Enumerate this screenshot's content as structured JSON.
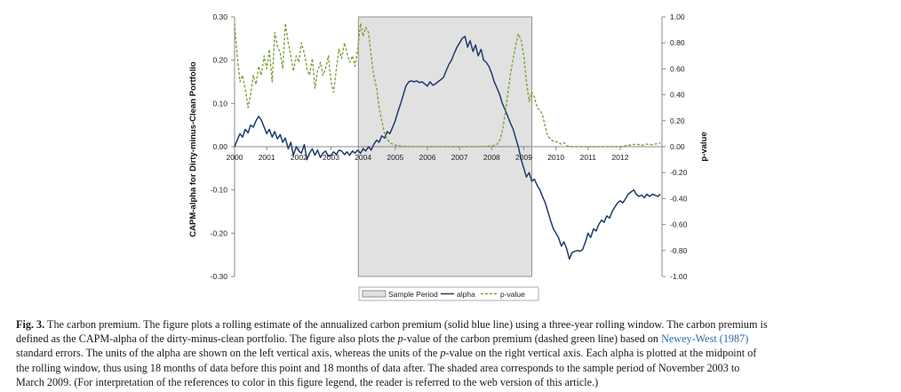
{
  "chart_data": {
    "type": "line",
    "left_axis": {
      "label": "CAPM-alpha for Dirty-minus-Clean Portfolio",
      "range": [
        -0.3,
        0.3
      ],
      "ticks": [
        "0.30",
        "0.20",
        "0.10",
        "0.00",
        "-0.10",
        "-0.20",
        "-0.30"
      ]
    },
    "right_axis": {
      "label": "p-value",
      "range": [
        -1.0,
        1.0
      ],
      "ticks": [
        "1.00",
        "0.80",
        "0.60",
        "0.40",
        "0.20",
        "0.00",
        "-0.20",
        "-0.40",
        "-0.60",
        "-0.80",
        "-1.00"
      ]
    },
    "x_axis": {
      "range": [
        2000,
        2013.3
      ],
      "ticks": [
        "2000",
        "2001",
        "2002",
        "2003",
        "2004",
        "2005",
        "2006",
        "2007",
        "2008",
        "2009",
        "2010",
        "2011",
        "2012"
      ]
    },
    "shaded_region": {
      "name": "Sample Period",
      "x_start": 2003.85,
      "x_end": 2009.25
    },
    "legend": [
      "Sample Period",
      "alpha",
      "p-value"
    ],
    "series": [
      {
        "name": "alpha",
        "axis": "left",
        "style": "solid",
        "color": "#1f3a6e",
        "points": [
          [
            2000.0,
            0.0
          ],
          [
            2000.08,
            0.015
          ],
          [
            2000.17,
            0.03
          ],
          [
            2000.25,
            0.022
          ],
          [
            2000.33,
            0.04
          ],
          [
            2000.42,
            0.032
          ],
          [
            2000.5,
            0.05
          ],
          [
            2000.58,
            0.045
          ],
          [
            2000.67,
            0.06
          ],
          [
            2000.75,
            0.07
          ],
          [
            2000.83,
            0.062
          ],
          [
            2000.92,
            0.045
          ],
          [
            2001.0,
            0.03
          ],
          [
            2001.08,
            0.04
          ],
          [
            2001.17,
            0.022
          ],
          [
            2001.25,
            0.035
          ],
          [
            2001.33,
            0.018
          ],
          [
            2001.42,
            0.028
          ],
          [
            2001.5,
            0.01
          ],
          [
            2001.58,
            0.02
          ],
          [
            2001.67,
            -0.005
          ],
          [
            2001.75,
            0.01
          ],
          [
            2001.83,
            -0.02
          ],
          [
            2001.92,
            0.0
          ],
          [
            2002.0,
            -0.01
          ],
          [
            2002.08,
            -0.015
          ],
          [
            2002.17,
            0.005
          ],
          [
            2002.25,
            -0.03
          ],
          [
            2002.33,
            -0.015
          ],
          [
            2002.42,
            -0.005
          ],
          [
            2002.5,
            -0.02
          ],
          [
            2002.58,
            -0.008
          ],
          [
            2002.67,
            -0.025
          ],
          [
            2002.75,
            -0.015
          ],
          [
            2002.83,
            -0.01
          ],
          [
            2002.92,
            -0.022
          ],
          [
            2003.0,
            -0.02
          ],
          [
            2003.08,
            -0.012
          ],
          [
            2003.17,
            -0.018
          ],
          [
            2003.25,
            -0.008
          ],
          [
            2003.33,
            -0.01
          ],
          [
            2003.42,
            -0.018
          ],
          [
            2003.5,
            -0.012
          ],
          [
            2003.58,
            -0.02
          ],
          [
            2003.67,
            -0.01
          ],
          [
            2003.75,
            -0.015
          ],
          [
            2003.83,
            -0.008
          ],
          [
            2003.92,
            -0.015
          ],
          [
            2004.0,
            -0.005
          ],
          [
            2004.08,
            -0.01
          ],
          [
            2004.17,
            0.0
          ],
          [
            2004.25,
            -0.008
          ],
          [
            2004.33,
            0.005
          ],
          [
            2004.42,
            0.015
          ],
          [
            2004.5,
            0.01
          ],
          [
            2004.58,
            0.025
          ],
          [
            2004.67,
            0.02
          ],
          [
            2004.75,
            0.035
          ],
          [
            2004.83,
            0.03
          ],
          [
            2004.92,
            0.045
          ],
          [
            2005.0,
            0.06
          ],
          [
            2005.08,
            0.08
          ],
          [
            2005.17,
            0.1
          ],
          [
            2005.25,
            0.12
          ],
          [
            2005.33,
            0.14
          ],
          [
            2005.42,
            0.15
          ],
          [
            2005.5,
            0.152
          ],
          [
            2005.58,
            0.15
          ],
          [
            2005.67,
            0.152
          ],
          [
            2005.75,
            0.148
          ],
          [
            2005.83,
            0.15
          ],
          [
            2005.92,
            0.145
          ],
          [
            2006.0,
            0.14
          ],
          [
            2006.08,
            0.15
          ],
          [
            2006.17,
            0.142
          ],
          [
            2006.25,
            0.145
          ],
          [
            2006.33,
            0.15
          ],
          [
            2006.42,
            0.155
          ],
          [
            2006.5,
            0.16
          ],
          [
            2006.58,
            0.175
          ],
          [
            2006.67,
            0.19
          ],
          [
            2006.75,
            0.2
          ],
          [
            2006.83,
            0.215
          ],
          [
            2006.92,
            0.23
          ],
          [
            2007.0,
            0.24
          ],
          [
            2007.08,
            0.25
          ],
          [
            2007.17,
            0.255
          ],
          [
            2007.25,
            0.23
          ],
          [
            2007.33,
            0.245
          ],
          [
            2007.42,
            0.22
          ],
          [
            2007.5,
            0.235
          ],
          [
            2007.58,
            0.21
          ],
          [
            2007.67,
            0.225
          ],
          [
            2007.75,
            0.2
          ],
          [
            2007.83,
            0.195
          ],
          [
            2007.92,
            0.185
          ],
          [
            2008.0,
            0.17
          ],
          [
            2008.08,
            0.15
          ],
          [
            2008.17,
            0.135
          ],
          [
            2008.25,
            0.12
          ],
          [
            2008.33,
            0.1
          ],
          [
            2008.42,
            0.085
          ],
          [
            2008.5,
            0.07
          ],
          [
            2008.58,
            0.055
          ],
          [
            2008.67,
            0.04
          ],
          [
            2008.75,
            0.02
          ],
          [
            2008.83,
            0.0
          ],
          [
            2008.92,
            -0.03
          ],
          [
            2009.0,
            -0.05
          ],
          [
            2009.08,
            -0.07
          ],
          [
            2009.17,
            -0.06
          ],
          [
            2009.25,
            -0.08
          ],
          [
            2009.33,
            -0.075
          ],
          [
            2009.42,
            -0.09
          ],
          [
            2009.5,
            -0.1
          ],
          [
            2009.58,
            -0.115
          ],
          [
            2009.67,
            -0.13
          ],
          [
            2009.75,
            -0.15
          ],
          [
            2009.83,
            -0.17
          ],
          [
            2009.92,
            -0.19
          ],
          [
            2010.0,
            -0.2
          ],
          [
            2010.08,
            -0.21
          ],
          [
            2010.17,
            -0.23
          ],
          [
            2010.25,
            -0.22
          ],
          [
            2010.33,
            -0.235
          ],
          [
            2010.42,
            -0.26
          ],
          [
            2010.5,
            -0.245
          ],
          [
            2010.58,
            -0.242
          ],
          [
            2010.67,
            -0.24
          ],
          [
            2010.75,
            -0.242
          ],
          [
            2010.83,
            -0.238
          ],
          [
            2010.92,
            -0.22
          ],
          [
            2011.0,
            -0.2
          ],
          [
            2011.08,
            -0.21
          ],
          [
            2011.17,
            -0.19
          ],
          [
            2011.25,
            -0.195
          ],
          [
            2011.33,
            -0.18
          ],
          [
            2011.42,
            -0.17
          ],
          [
            2011.5,
            -0.175
          ],
          [
            2011.58,
            -0.16
          ],
          [
            2011.67,
            -0.165
          ],
          [
            2011.75,
            -0.15
          ],
          [
            2011.83,
            -0.14
          ],
          [
            2011.92,
            -0.13
          ],
          [
            2012.0,
            -0.125
          ],
          [
            2012.08,
            -0.13
          ],
          [
            2012.17,
            -0.12
          ],
          [
            2012.25,
            -0.11
          ],
          [
            2012.33,
            -0.105
          ],
          [
            2012.42,
            -0.1
          ],
          [
            2012.5,
            -0.11
          ],
          [
            2012.58,
            -0.115
          ],
          [
            2012.67,
            -0.112
          ],
          [
            2012.75,
            -0.118
          ],
          [
            2012.83,
            -0.11
          ],
          [
            2012.92,
            -0.115
          ],
          [
            2013.0,
            -0.11
          ],
          [
            2013.08,
            -0.112
          ],
          [
            2013.17,
            -0.115
          ],
          [
            2013.25,
            -0.11
          ]
        ]
      },
      {
        "name": "p-value",
        "axis": "right",
        "style": "dashed",
        "color": "#7aa33c",
        "points": [
          [
            2000.0,
            0.95
          ],
          [
            2000.08,
            0.7
          ],
          [
            2000.17,
            0.5
          ],
          [
            2000.25,
            0.55
          ],
          [
            2000.33,
            0.45
          ],
          [
            2000.42,
            0.3
          ],
          [
            2000.5,
            0.4
          ],
          [
            2000.58,
            0.55
          ],
          [
            2000.67,
            0.48
          ],
          [
            2000.75,
            0.62
          ],
          [
            2000.83,
            0.55
          ],
          [
            2000.92,
            0.7
          ],
          [
            2001.0,
            0.6
          ],
          [
            2001.08,
            0.75
          ],
          [
            2001.17,
            0.5
          ],
          [
            2001.25,
            0.88
          ],
          [
            2001.33,
            0.78
          ],
          [
            2001.42,
            0.72
          ],
          [
            2001.5,
            0.6
          ],
          [
            2001.58,
            0.95
          ],
          [
            2001.67,
            0.8
          ],
          [
            2001.75,
            0.7
          ],
          [
            2001.83,
            0.58
          ],
          [
            2001.92,
            0.7
          ],
          [
            2002.0,
            0.65
          ],
          [
            2002.08,
            0.8
          ],
          [
            2002.17,
            0.72
          ],
          [
            2002.25,
            0.6
          ],
          [
            2002.33,
            0.55
          ],
          [
            2002.42,
            0.68
          ],
          [
            2002.5,
            0.45
          ],
          [
            2002.58,
            0.58
          ],
          [
            2002.67,
            0.65
          ],
          [
            2002.75,
            0.55
          ],
          [
            2002.83,
            0.6
          ],
          [
            2002.92,
            0.7
          ],
          [
            2003.0,
            0.5
          ],
          [
            2003.08,
            0.42
          ],
          [
            2003.17,
            0.6
          ],
          [
            2003.25,
            0.75
          ],
          [
            2003.33,
            0.68
          ],
          [
            2003.42,
            0.8
          ],
          [
            2003.5,
            0.72
          ],
          [
            2003.58,
            0.65
          ],
          [
            2003.67,
            0.7
          ],
          [
            2003.75,
            0.62
          ],
          [
            2003.83,
            0.75
          ],
          [
            2003.92,
            0.95
          ],
          [
            2004.0,
            0.85
          ],
          [
            2004.08,
            0.92
          ],
          [
            2004.17,
            0.88
          ],
          [
            2004.25,
            0.7
          ],
          [
            2004.33,
            0.55
          ],
          [
            2004.42,
            0.45
          ],
          [
            2004.5,
            0.3
          ],
          [
            2004.58,
            0.2
          ],
          [
            2004.67,
            0.1
          ],
          [
            2004.75,
            0.06
          ],
          [
            2004.83,
            0.03
          ],
          [
            2004.92,
            0.02
          ],
          [
            2005.0,
            0.01
          ],
          [
            2005.08,
            0.01
          ],
          [
            2005.17,
            0.005
          ],
          [
            2005.25,
            0.003
          ],
          [
            2005.33,
            0.002
          ],
          [
            2005.5,
            0.001
          ],
          [
            2005.75,
            0.001
          ],
          [
            2006.0,
            0.0
          ],
          [
            2006.5,
            0.0
          ],
          [
            2007.0,
            0.0
          ],
          [
            2007.5,
            0.0
          ],
          [
            2007.75,
            0.002
          ],
          [
            2008.0,
            0.005
          ],
          [
            2008.08,
            0.01
          ],
          [
            2008.17,
            0.02
          ],
          [
            2008.25,
            0.05
          ],
          [
            2008.33,
            0.12
          ],
          [
            2008.42,
            0.25
          ],
          [
            2008.5,
            0.4
          ],
          [
            2008.58,
            0.55
          ],
          [
            2008.67,
            0.68
          ],
          [
            2008.75,
            0.78
          ],
          [
            2008.83,
            0.87
          ],
          [
            2008.92,
            0.82
          ],
          [
            2009.0,
            0.7
          ],
          [
            2009.08,
            0.5
          ],
          [
            2009.17,
            0.35
          ],
          [
            2009.25,
            0.42
          ],
          [
            2009.33,
            0.38
          ],
          [
            2009.42,
            0.3
          ],
          [
            2009.5,
            0.28
          ],
          [
            2009.58,
            0.25
          ],
          [
            2009.67,
            0.15
          ],
          [
            2009.75,
            0.08
          ],
          [
            2009.83,
            0.06
          ],
          [
            2009.92,
            0.04
          ],
          [
            2010.0,
            0.04
          ],
          [
            2010.08,
            0.03
          ],
          [
            2010.17,
            0.02
          ],
          [
            2010.25,
            0.03
          ],
          [
            2010.33,
            0.01
          ],
          [
            2010.42,
            0.0
          ],
          [
            2010.5,
            0.0
          ],
          [
            2010.75,
            0.0
          ],
          [
            2011.0,
            0.0
          ],
          [
            2011.5,
            0.0
          ],
          [
            2012.0,
            0.0
          ],
          [
            2012.25,
            0.01
          ],
          [
            2012.5,
            0.02
          ],
          [
            2012.67,
            0.01
          ],
          [
            2012.83,
            0.02
          ],
          [
            2013.0,
            0.015
          ],
          [
            2013.17,
            0.025
          ],
          [
            2013.25,
            0.03
          ]
        ]
      }
    ]
  },
  "caption": {
    "label": "Fig. 3.",
    "line1": "The carbon premium. The figure plots a rolling estimate of the annualized carbon premium (solid blue line) using a three-year rolling window. The carbon premium is",
    "line2_a": "defined as the CAPM-alpha of the dirty-minus-clean portfolio. The figure also plots the ",
    "p1": "p",
    "line2_b": "-value of the carbon premium (dashed green line) based on ",
    "ref": "Newey-West (1987)",
    "line3_a": "standard errors. The units of the alpha are shown on the left vertical axis, whereas the units of the ",
    "p2": "p",
    "line3_b": "-value on the right vertical axis. Each alpha is plotted at the midpoint of",
    "line4": "the rolling window, thus using 18 months of data before this point and 18 months of data after. The shaded area corresponds to the sample period of November 2003 to",
    "line5": "March 2009. (For interpretation of the references to color in this figure legend, the reader is referred to the web version of this article.)"
  }
}
